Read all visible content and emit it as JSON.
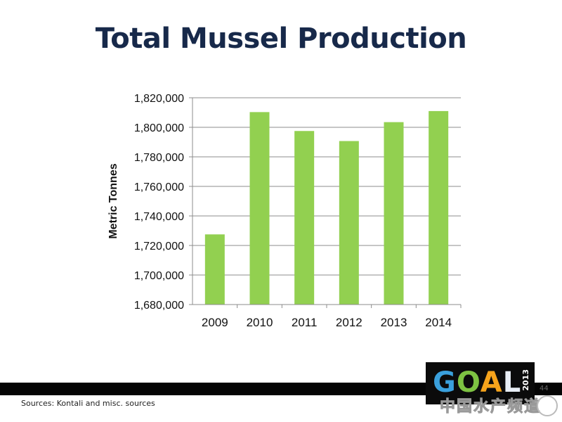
{
  "slide": {
    "title": "Total Mussel Production",
    "sources": "Sources: Kontali and misc. sources",
    "page_number": "44"
  },
  "logo": {
    "letters": "GOAL",
    "year": "2013"
  },
  "watermark": {
    "text": "中国水产频道"
  },
  "colors": {
    "title": "#17294a",
    "bar": "#92d050",
    "grid": "#8c8c8c"
  },
  "chart_data": {
    "type": "bar",
    "categories": [
      "2009",
      "2010",
      "2011",
      "2012",
      "2013",
      "2014"
    ],
    "values": [
      1727500,
      1810300,
      1797500,
      1790700,
      1803500,
      1811000
    ],
    "ylabel": "Metric Tonnes",
    "xlabel": "",
    "ylim": [
      1680000,
      1820000
    ],
    "yticks": [
      "1,680,000",
      "1,700,000",
      "1,720,000",
      "1,740,000",
      "1,760,000",
      "1,780,000",
      "1,800,000",
      "1,820,000"
    ],
    "grid": true,
    "legend": "none"
  }
}
